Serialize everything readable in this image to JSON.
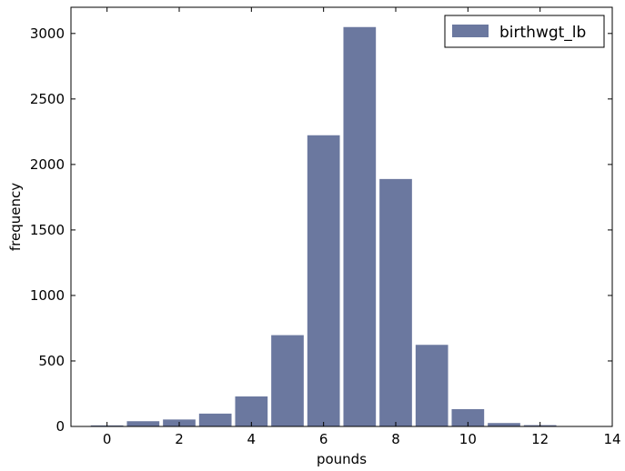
{
  "chart_data": {
    "type": "bar",
    "xlabel": "pounds",
    "ylabel": "frequency",
    "xlim": [
      -1,
      14
    ],
    "ylim": [
      0,
      3200
    ],
    "xticks": [
      0,
      2,
      4,
      6,
      8,
      10,
      12,
      14
    ],
    "yticks": [
      0,
      500,
      1000,
      1500,
      2000,
      2500,
      3000
    ],
    "bar_width": 0.9,
    "grid": false,
    "legend_position": "top-right",
    "series": [
      {
        "name": "birthwgt_lb",
        "color": "#6b789f",
        "x": [
          0,
          1,
          2,
          3,
          4,
          5,
          6,
          7,
          8,
          9,
          10,
          11,
          12
        ],
        "values": [
          8,
          40,
          53,
          98,
          229,
          697,
          2223,
          3049,
          1889,
          623,
          132,
          26,
          10
        ]
      }
    ]
  }
}
